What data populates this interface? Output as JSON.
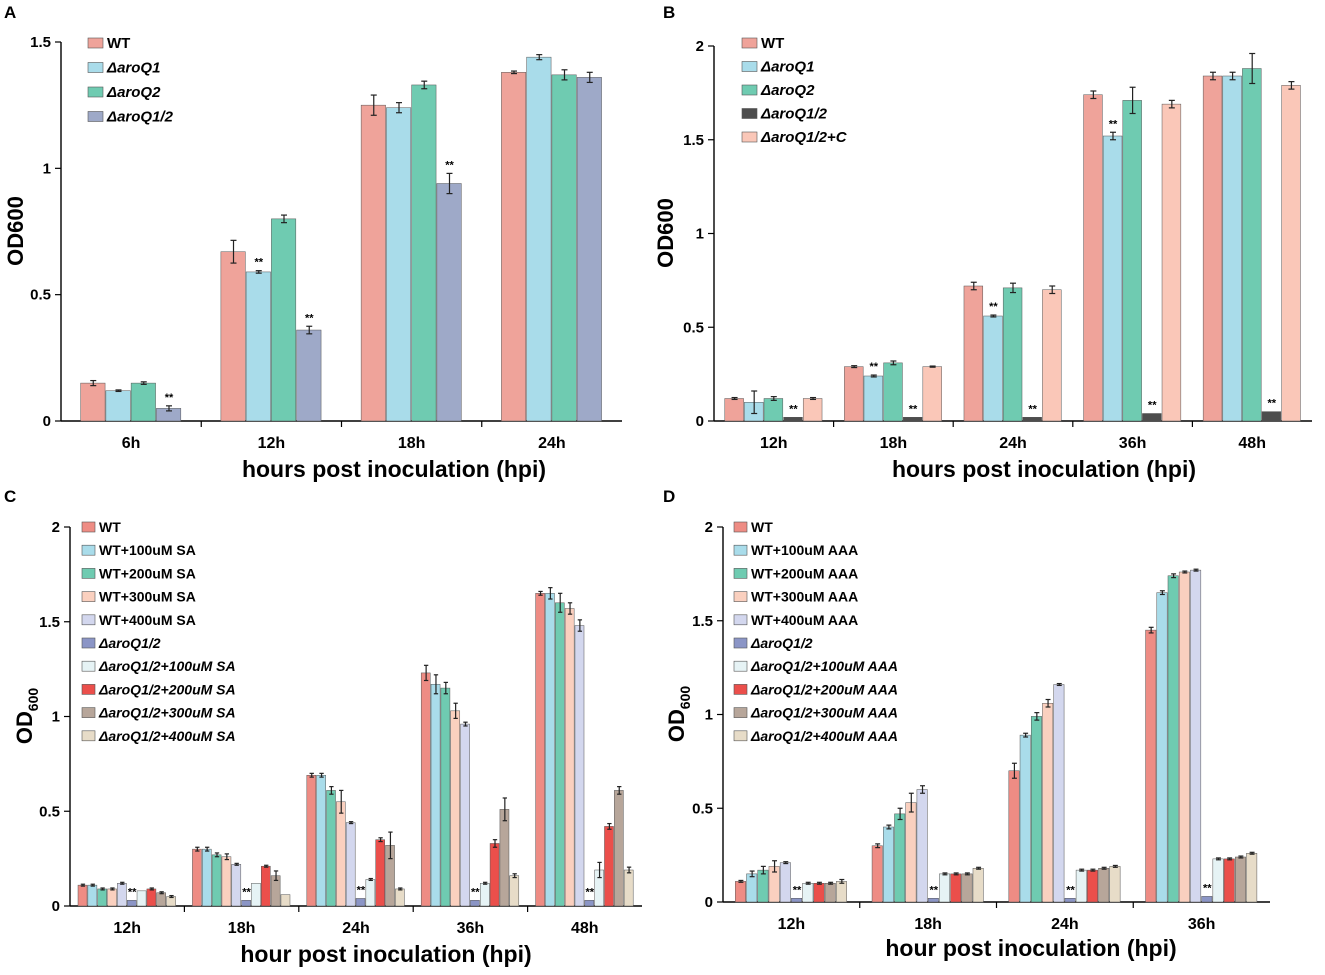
{
  "chart_data": [
    {
      "panel": "A",
      "type": "bar",
      "title": "",
      "xlabel": "hours post inoculation (hpi)",
      "ylabel": "OD600",
      "ylabel_sub": "",
      "ylim": [
        0,
        1.5
      ],
      "yticks": [
        0,
        0.5,
        1,
        1.5
      ],
      "ytick_labels": [
        "0",
        "0.5",
        "1",
        "1.5"
      ],
      "categories": [
        "6h",
        "12h",
        "18h",
        "24h"
      ],
      "legend_position": "top-left",
      "series": [
        {
          "name": "WT",
          "italic": false,
          "color": "#EFA39A",
          "values": [
            0.15,
            0.67,
            1.25,
            1.38
          ],
          "errors": [
            0.01,
            0.045,
            0.04,
            0.005
          ]
        },
        {
          "name": "ΔaroQ1",
          "italic": true,
          "color": "#A9DCEA",
          "values": [
            0.12,
            0.59,
            1.24,
            1.44
          ],
          "errors": [
            0.003,
            0.005,
            0.02,
            0.01
          ]
        },
        {
          "name": "ΔaroQ2",
          "italic": true,
          "color": "#6FCBB1",
          "values": [
            0.15,
            0.8,
            1.33,
            1.37
          ],
          "errors": [
            0.005,
            0.015,
            0.015,
            0.02
          ]
        },
        {
          "name": "ΔaroQ1/2",
          "italic": true,
          "color": "#9EA9C8",
          "values": [
            0.05,
            0.36,
            0.94,
            1.36
          ],
          "errors": [
            0.01,
            0.015,
            0.04,
            0.02
          ]
        }
      ],
      "annotations": [
        {
          "text": "**",
          "series": 3,
          "category": 0
        },
        {
          "text": "**",
          "series": 1,
          "category": 1
        },
        {
          "text": "**",
          "series": 3,
          "category": 1
        },
        {
          "text": "**",
          "series": 3,
          "category": 2
        }
      ]
    },
    {
      "panel": "B",
      "type": "bar",
      "title": "",
      "xlabel": "hours post inoculation (hpi)",
      "ylabel": "OD600",
      "ylabel_sub": "",
      "ylim": [
        0,
        2
      ],
      "yticks": [
        0,
        0.5,
        1,
        1.5,
        2
      ],
      "ytick_labels": [
        "0",
        "0.5",
        "1",
        "1.5",
        "2"
      ],
      "categories": [
        "12h",
        "18h",
        "24h",
        "36h",
        "48h"
      ],
      "legend_position": "top-left",
      "series": [
        {
          "name": "WT",
          "italic": false,
          "color": "#EFA39A",
          "values": [
            0.12,
            0.29,
            0.72,
            1.74,
            1.84
          ],
          "errors": [
            0.005,
            0.005,
            0.02,
            0.02,
            0.02
          ]
        },
        {
          "name": "ΔaroQ1",
          "italic": true,
          "color": "#A9DCEA",
          "values": [
            0.1,
            0.24,
            0.56,
            1.52,
            1.84
          ],
          "errors": [
            0.06,
            0.005,
            0.005,
            0.02,
            0.02
          ]
        },
        {
          "name": "ΔaroQ2",
          "italic": true,
          "color": "#6FCBB1",
          "values": [
            0.12,
            0.31,
            0.71,
            1.71,
            1.88
          ],
          "errors": [
            0.01,
            0.01,
            0.025,
            0.07,
            0.08
          ]
        },
        {
          "name": "ΔaroQ1/2",
          "italic": true,
          "color": "#4D4D4D",
          "values": [
            0.02,
            0.02,
            0.02,
            0.04,
            0.05
          ],
          "errors": [
            0,
            0,
            0,
            0,
            0
          ]
        },
        {
          "name": "ΔaroQ1/2+C",
          "italic": true,
          "color": "#FAC7B8",
          "values": [
            0.12,
            0.29,
            0.7,
            1.69,
            1.79
          ],
          "errors": [
            0.005,
            0.003,
            0.02,
            0.02,
            0.02
          ]
        }
      ],
      "annotations": [
        {
          "text": "**",
          "series": 3,
          "category": 0
        },
        {
          "text": "**",
          "series": 1,
          "category": 1
        },
        {
          "text": "**",
          "series": 3,
          "category": 1
        },
        {
          "text": "**",
          "series": 1,
          "category": 2
        },
        {
          "text": "**",
          "series": 3,
          "category": 2
        },
        {
          "text": "**",
          "series": 1,
          "category": 3
        },
        {
          "text": "**",
          "series": 3,
          "category": 3
        },
        {
          "text": "**",
          "series": 3,
          "category": 4
        }
      ]
    },
    {
      "panel": "C",
      "type": "bar",
      "title": "",
      "xlabel": "hour post inoculation (hpi)",
      "ylabel": "OD",
      "ylabel_sub": "600",
      "ylim": [
        0,
        2
      ],
      "yticks": [
        0,
        0.5,
        1,
        1.5,
        2
      ],
      "ytick_labels": [
        "0",
        "0.5",
        "1",
        "1.5",
        "2"
      ],
      "categories": [
        "12h",
        "18h",
        "24h",
        "36h",
        "48h"
      ],
      "legend_position": "top-left",
      "series": [
        {
          "name": "WT",
          "italic": false,
          "color": "#EE8C84",
          "values": [
            0.11,
            0.3,
            0.69,
            1.23,
            1.65
          ],
          "errors": [
            0.005,
            0.01,
            0.01,
            0.04,
            0.01
          ]
        },
        {
          "name": "WT+100uM SA",
          "italic": false,
          "color": "#A9DCEA",
          "values": [
            0.11,
            0.3,
            0.69,
            1.17,
            1.65
          ],
          "errors": [
            0.005,
            0.01,
            0.01,
            0.05,
            0.03
          ]
        },
        {
          "name": "WT+200uM SA",
          "italic": false,
          "color": "#6FCBB1",
          "values": [
            0.09,
            0.27,
            0.61,
            1.15,
            1.6
          ],
          "errors": [
            0.005,
            0.01,
            0.02,
            0.03,
            0.05
          ]
        },
        {
          "name": "WT+300uM SA",
          "italic": false,
          "color": "#FAD0BF",
          "values": [
            0.09,
            0.26,
            0.55,
            1.03,
            1.57
          ],
          "errors": [
            0.005,
            0.015,
            0.06,
            0.04,
            0.03
          ]
        },
        {
          "name": "WT+400uM SA",
          "italic": false,
          "color": "#D3D7EE",
          "values": [
            0.12,
            0.22,
            0.44,
            0.96,
            1.48
          ],
          "errors": [
            0.005,
            0.005,
            0.005,
            0.01,
            0.03
          ]
        },
        {
          "name": "ΔaroQ1/2",
          "italic": true,
          "color": "#8B95C6",
          "values": [
            0.03,
            0.03,
            0.04,
            0.03,
            0.03
          ],
          "errors": [
            0,
            0,
            0,
            0,
            0
          ]
        },
        {
          "name": "ΔaroQ1/2+100uM SA",
          "italic": true,
          "color": "#E6F3F5",
          "values": [
            0.08,
            0.12,
            0.14,
            0.12,
            0.19
          ],
          "errors": [
            0,
            0,
            0.005,
            0.005,
            0.04
          ]
        },
        {
          "name": "ΔaroQ1/2+200uM SA",
          "italic": true,
          "color": "#EB4F4B",
          "values": [
            0.09,
            0.21,
            0.35,
            0.33,
            0.42
          ],
          "errors": [
            0.005,
            0.005,
            0.01,
            0.02,
            0.015
          ]
        },
        {
          "name": "ΔaroQ1/2+300uM SA",
          "italic": true,
          "color": "#B7A69A",
          "values": [
            0.07,
            0.16,
            0.32,
            0.51,
            0.61
          ],
          "errors": [
            0.005,
            0.025,
            0.07,
            0.06,
            0.02
          ]
        },
        {
          "name": "ΔaroQ1/2+400uM SA",
          "italic": true,
          "color": "#E7DCC8",
          "values": [
            0.05,
            0.06,
            0.09,
            0.16,
            0.19
          ],
          "errors": [
            0.005,
            0,
            0.005,
            0.01,
            0.015
          ]
        }
      ],
      "annotations": [
        {
          "text": "**",
          "series": 5,
          "category": 0
        },
        {
          "text": "**",
          "series": 5,
          "category": 1
        },
        {
          "text": "**",
          "series": 5,
          "category": 2
        },
        {
          "text": "**",
          "series": 5,
          "category": 3
        },
        {
          "text": "**",
          "series": 5,
          "category": 4
        }
      ]
    },
    {
      "panel": "D",
      "type": "bar",
      "title": "",
      "xlabel": "hour post inoculation (hpi)",
      "ylabel": "OD",
      "ylabel_sub": "600",
      "ylim": [
        0,
        2
      ],
      "yticks": [
        0,
        0.5,
        1,
        1.5,
        2
      ],
      "ytick_labels": [
        "0",
        "0.5",
        "1",
        "1.5",
        "2"
      ],
      "categories": [
        "12h",
        "18h",
        "24h",
        "36h"
      ],
      "legend_position": "top-left",
      "series": [
        {
          "name": "WT",
          "italic": false,
          "color": "#EE8C84",
          "values": [
            0.11,
            0.3,
            0.7,
            1.45
          ],
          "errors": [
            0.005,
            0.01,
            0.04,
            0.015
          ]
        },
        {
          "name": "WT+100uM AAA",
          "italic": false,
          "color": "#A9DCEA",
          "values": [
            0.15,
            0.4,
            0.89,
            1.65
          ],
          "errors": [
            0.015,
            0.01,
            0.01,
            0.01
          ]
        },
        {
          "name": "WT+200uM AAA",
          "italic": false,
          "color": "#6FCBB1",
          "values": [
            0.17,
            0.47,
            0.99,
            1.74
          ],
          "errors": [
            0.02,
            0.03,
            0.02,
            0.01
          ]
        },
        {
          "name": "WT+300uM AAA",
          "italic": false,
          "color": "#FAD0BF",
          "values": [
            0.19,
            0.53,
            1.06,
            1.76
          ],
          "errors": [
            0.03,
            0.05,
            0.02,
            0.005
          ]
        },
        {
          "name": "WT+400uM AAA",
          "italic": false,
          "color": "#D3D7EE",
          "values": [
            0.21,
            0.6,
            1.16,
            1.77
          ],
          "errors": [
            0.005,
            0.02,
            0.005,
            0.005
          ]
        },
        {
          "name": "ΔaroQ1/2",
          "italic": true,
          "color": "#8B95C6",
          "values": [
            0.02,
            0.02,
            0.02,
            0.03
          ],
          "errors": [
            0,
            0,
            0,
            0
          ]
        },
        {
          "name": "ΔaroQ1/2+100uM AAA",
          "italic": true,
          "color": "#E6F3F5",
          "values": [
            0.1,
            0.15,
            0.17,
            0.23
          ],
          "errors": [
            0.005,
            0.005,
            0.005,
            0.005
          ]
        },
        {
          "name": "ΔaroQ1/2+200uM AAA",
          "italic": true,
          "color": "#EB4F4B",
          "values": [
            0.1,
            0.15,
            0.17,
            0.23
          ],
          "errors": [
            0.005,
            0.005,
            0.005,
            0.005
          ]
        },
        {
          "name": "ΔaroQ1/2+300uM AAA",
          "italic": true,
          "color": "#B7A69A",
          "values": [
            0.1,
            0.15,
            0.18,
            0.24
          ],
          "errors": [
            0.005,
            0.005,
            0.005,
            0.005
          ]
        },
        {
          "name": "ΔaroQ1/2+400uM AAA",
          "italic": true,
          "color": "#E7DCC8",
          "values": [
            0.11,
            0.18,
            0.19,
            0.26
          ],
          "errors": [
            0.01,
            0.005,
            0.005,
            0.005
          ]
        }
      ],
      "annotations": [
        {
          "text": "**",
          "series": 5,
          "category": 0
        },
        {
          "text": "**",
          "series": 5,
          "category": 1
        },
        {
          "text": "**",
          "series": 5,
          "category": 2
        },
        {
          "text": "**",
          "series": 5,
          "category": 3
        }
      ]
    }
  ]
}
